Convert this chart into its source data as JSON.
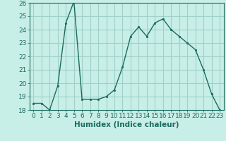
{
  "x": [
    0,
    1,
    2,
    3,
    4,
    5,
    6,
    7,
    8,
    9,
    10,
    11,
    12,
    13,
    14,
    15,
    16,
    17,
    18,
    19,
    20,
    21,
    22,
    23
  ],
  "y": [
    18.5,
    18.5,
    18.0,
    19.8,
    24.5,
    26.1,
    18.8,
    18.8,
    18.8,
    19.0,
    19.5,
    21.2,
    23.5,
    24.2,
    23.5,
    24.5,
    24.8,
    24.0,
    23.5,
    23.0,
    22.5,
    21.0,
    19.2,
    18.0
  ],
  "xlabel": "Humidex (Indice chaleur)",
  "ylim": [
    18,
    26
  ],
  "yticks": [
    18,
    19,
    20,
    21,
    22,
    23,
    24,
    25,
    26
  ],
  "xticks": [
    0,
    1,
    2,
    3,
    4,
    5,
    6,
    7,
    8,
    9,
    10,
    11,
    12,
    13,
    14,
    15,
    16,
    17,
    18,
    19,
    20,
    21,
    22,
    23
  ],
  "line_color": "#1a6b5e",
  "marker_color": "#1a6b5e",
  "bg_color": "#c8eee8",
  "grid_color": "#a0d0c8",
  "text_color": "#1a6b5e",
  "tick_label_fontsize": 6.5,
  "xlabel_fontsize": 7.5
}
